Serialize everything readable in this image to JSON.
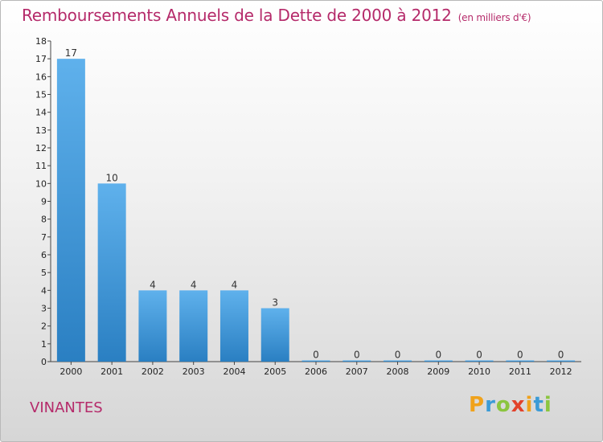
{
  "header": {
    "title": "Remboursements Annuels de la Dette de 2000 à 2012",
    "subtitle": "(en milliers d'€)"
  },
  "footer": {
    "town": "VINANTES",
    "logo_letters": [
      "P",
      "r",
      "o",
      "x",
      "i",
      "t",
      "i"
    ],
    "logo_colors": [
      "#f0a21b",
      "#3b9bd6",
      "#8bc53f",
      "#e2422b",
      "#f0a21b",
      "#3b9bd6",
      "#8bc53f"
    ]
  },
  "chart_data": {
    "type": "bar",
    "title": "Remboursements Annuels de la Dette de 2000 à 2012",
    "subtitle": "(en milliers d'€)",
    "xlabel": "",
    "ylabel": "",
    "categories": [
      "2000",
      "2001",
      "2002",
      "2003",
      "2004",
      "2005",
      "2006",
      "2007",
      "2008",
      "2009",
      "2010",
      "2011",
      "2012"
    ],
    "values": [
      17,
      10,
      4,
      4,
      4,
      3,
      0,
      0,
      0,
      0,
      0,
      0,
      0
    ],
    "ylim": [
      0,
      18
    ],
    "yticks": [
      0,
      1,
      2,
      3,
      4,
      5,
      6,
      7,
      8,
      9,
      10,
      11,
      12,
      13,
      14,
      15,
      16,
      17,
      18
    ],
    "grid": false,
    "bar_color": "#4a9ede"
  }
}
